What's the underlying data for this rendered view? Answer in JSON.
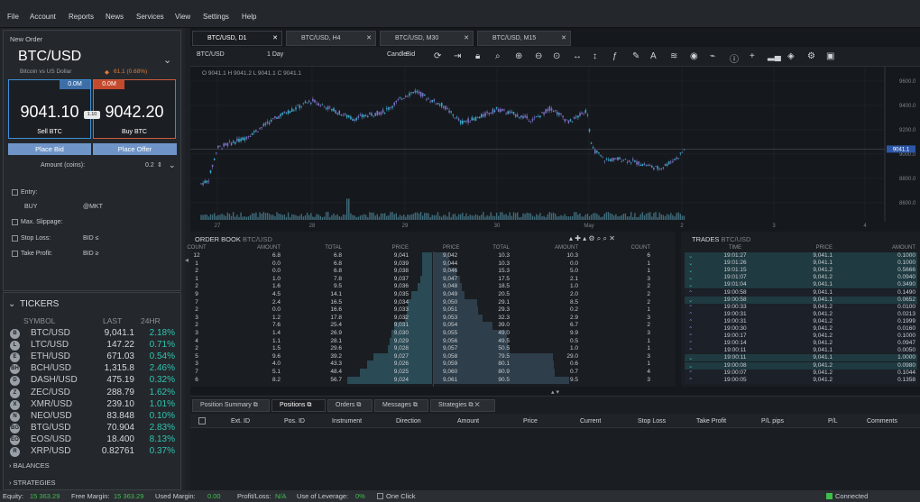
{
  "menu": [
    "File",
    "Account",
    "Reports",
    "News",
    "Services",
    "View",
    "Settings",
    "Help"
  ],
  "order": {
    "title": "New Order",
    "symbol": "BTC/USD",
    "subtitle": "Bitcoin vs US Dollar",
    "change": "61.1 (0.68%)",
    "sell_qty": "0.0M",
    "buy_qty": "0.0M",
    "sell_price": "9041.10",
    "buy_price": "9042.20",
    "spread": "1.10",
    "sell_label": "Sell BTC",
    "buy_label": "Buy BTC",
    "place_bid": "Place Bid",
    "place_offer": "Place Offer",
    "amount_label": "Amount (coins):",
    "amount_value": "0.2",
    "entry": "Entry:",
    "entry_type": "BUY",
    "entry_mkt": "@MKT",
    "max_slippage": "Max. Slippage:",
    "stop_loss": "Stop Loss:",
    "stop_val": "BID ≤",
    "take_profit": "Take Profit:",
    "take_val": "BID ≥"
  },
  "tickers": {
    "title": "TICKERS",
    "col_symbol": "SYMBOL",
    "col_last": "LAST",
    "col_24hr": "24HR",
    "rows": [
      {
        "icon": "B",
        "symbol": "BTC/USD",
        "last": "9,041.1",
        "change": "2.18%"
      },
      {
        "icon": "L",
        "symbol": "LTC/USD",
        "last": "147.22",
        "change": "0.71%"
      },
      {
        "icon": "E",
        "symbol": "ETH/USD",
        "last": "671.03",
        "change": "0.54%"
      },
      {
        "icon": "BH",
        "symbol": "BCH/USD",
        "last": "1,315.8",
        "change": "2.46%"
      },
      {
        "icon": "D",
        "symbol": "DASH/USD",
        "last": "475.19",
        "change": "0.32%"
      },
      {
        "icon": "Z",
        "symbol": "ZEC/USD",
        "last": "288.79",
        "change": "1.62%"
      },
      {
        "icon": "X",
        "symbol": "XMR/USD",
        "last": "239.10",
        "change": "1.01%"
      },
      {
        "icon": "N",
        "symbol": "NEO/USD",
        "last": "83.848",
        "change": "0.10%"
      },
      {
        "icon": "BG",
        "symbol": "BTG/USD",
        "last": "70.904",
        "change": "2.83%"
      },
      {
        "icon": "EO",
        "symbol": "EOS/USD",
        "last": "18.400",
        "change": "8.13%"
      },
      {
        "icon": "R",
        "symbol": "XRP/USD",
        "last": "0.82761",
        "change": "0.37%"
      }
    ],
    "balances": "BALANCES",
    "strategies": "STRATEGIES"
  },
  "tabs": [
    "BTC/USD, D1",
    "BTC/USD, H4",
    "BTC/USD, M30",
    "BTC/USD, M15"
  ],
  "toolbar": {
    "symbol": "BTC/USD",
    "period": "1 Day",
    "style": "Candle",
    "side": "Bid"
  },
  "chart": {
    "ohlc": "O 9041.1  H 9041.2  L 9041.1  C 9041.1",
    "price_tag": "9041.1",
    "yticks": [
      "9600.0",
      "9400.0",
      "9200.0",
      "9000.0",
      "8800.0",
      "8600.0"
    ],
    "xticks": [
      "27",
      "28",
      "29",
      "30",
      "May",
      "2",
      "3",
      "4"
    ]
  },
  "orderbook": {
    "title": "ORDER BOOK",
    "subtitle": "BTC/USD",
    "cols": [
      "COUNT",
      "AMOUNT",
      "TOTAL",
      "PRICE",
      "PRICE",
      "TOTAL",
      "AMOUNT",
      "COUNT"
    ],
    "rows": [
      [
        "12",
        "6.8",
        "6.8",
        "9,041",
        "9,042",
        "10.3",
        "10.3",
        "6"
      ],
      [
        "1",
        "0.0",
        "6.8",
        "9,039",
        "9,044",
        "10.3",
        "0.0",
        "1"
      ],
      [
        "2",
        "0.0",
        "6.8",
        "9,038",
        "9,046",
        "15.3",
        "5.0",
        "1"
      ],
      [
        "1",
        "1.0",
        "7.8",
        "9,037",
        "9,047",
        "17.5",
        "2.1",
        "3"
      ],
      [
        "2",
        "1.6",
        "9.5",
        "9,036",
        "9,048",
        "18.5",
        "1.0",
        "2"
      ],
      [
        "9",
        "4.5",
        "14.1",
        "9,035",
        "9,049",
        "20.5",
        "2.0",
        "2"
      ],
      [
        "7",
        "2.4",
        "16.5",
        "9,034",
        "9,050",
        "29.1",
        "8.5",
        "2"
      ],
      [
        "2",
        "0.0",
        "16.6",
        "9,033",
        "9,051",
        "29.3",
        "0.2",
        "1"
      ],
      [
        "3",
        "1.2",
        "17.8",
        "9,032",
        "9,053",
        "32.3",
        "2.9",
        "3"
      ],
      [
        "2",
        "7.6",
        "25.4",
        "9,031",
        "9,054",
        "39.0",
        "6.7",
        "2"
      ],
      [
        "3",
        "1.4",
        "26.9",
        "9,030",
        "9,055",
        "49.0",
        "9.9",
        "3"
      ],
      [
        "4",
        "1.1",
        "28.1",
        "9,029",
        "9,056",
        "49.5",
        "0.5",
        "1"
      ],
      [
        "2",
        "1.5",
        "29.6",
        "9,028",
        "9,057",
        "50.5",
        "1.0",
        "1"
      ],
      [
        "5",
        "9.6",
        "39.2",
        "9,027",
        "9,058",
        "79.5",
        "29.0",
        "3"
      ],
      [
        "3",
        "4.0",
        "43.3",
        "9,026",
        "9,059",
        "80.1",
        "0.6",
        "1"
      ],
      [
        "7",
        "5.1",
        "48.4",
        "9,025",
        "9,060",
        "80.9",
        "0.7",
        "4"
      ],
      [
        "6",
        "8.2",
        "56.7",
        "9,024",
        "9,061",
        "90.5",
        "9.5",
        "3"
      ]
    ]
  },
  "trades": {
    "title": "TRADES",
    "subtitle": "BTC/USD",
    "cols": [
      "TIME",
      "PRICE",
      "AMOUNT"
    ],
    "rows": [
      [
        "v",
        "19:01:27",
        "9,041.1",
        "0.1000"
      ],
      [
        "v",
        "19:01:26",
        "9,041.1",
        "0.1000"
      ],
      [
        "v",
        "19:01:15",
        "9,041.2",
        "0.5666"
      ],
      [
        "v",
        "19:01:07",
        "9,041.2",
        "0.0940"
      ],
      [
        "v",
        "19:01:04",
        "9,041.1",
        "0.3490"
      ],
      [
        "^",
        "19:00:58",
        "9,041.1",
        "0.1490"
      ],
      [
        "v",
        "19:00:58",
        "9,041.1",
        "0.0652"
      ],
      [
        "^",
        "19:00:33",
        "9,041.2",
        "0.0100"
      ],
      [
        "^",
        "19:00:31",
        "9,041.2",
        "0.0213"
      ],
      [
        "^",
        "19:00:31",
        "9,041.2",
        "0.1999"
      ],
      [
        "^",
        "19:00:30",
        "9,041.2",
        "0.0160"
      ],
      [
        "^",
        "19:00:17",
        "9,041.2",
        "0.1000"
      ],
      [
        "^",
        "19:00:14",
        "9,041.2",
        "0.0947"
      ],
      [
        "^",
        "19:00:11",
        "9,041.1",
        "0.0050"
      ],
      [
        "v",
        "19:00:11",
        "9,041.1",
        "1.0000"
      ],
      [
        "v",
        "19:00:08",
        "9,041.2",
        "0.0980"
      ],
      [
        "^",
        "19:00:07",
        "9,041.2",
        "0.1044"
      ],
      [
        "^",
        "19:00:05",
        "9,041.2",
        "0.1358"
      ]
    ]
  },
  "bottom": {
    "tabs": [
      "Position Summary",
      "Positions",
      "Orders",
      "Messages",
      "Strategies"
    ],
    "cols": [
      "Ext. ID",
      "Pos. ID",
      "Instrument",
      "Direction",
      "Amount",
      "Price",
      "Current",
      "Stop Loss",
      "Take Profit",
      "P/L pips",
      "P/L",
      "Comments"
    ]
  },
  "status": {
    "equity_label": "Equity:",
    "equity": "15 363.29",
    "free_label": "Free Margin:",
    "free": "15 363.29",
    "used_label": "Used Margin:",
    "used": "0.00",
    "pl_label": "Profit/Loss:",
    "pl": "N/A",
    "lev_label": "Use of Leverage:",
    "lev": "0%",
    "oneclick": "One Click",
    "connected": "Connected"
  },
  "colors": {
    "up": "#2fc4b0",
    "candle_up": "#3aa6c8",
    "candle_down": "#7b6fc4",
    "green": "#3fbf4a",
    "buy": "#d05a3c",
    "sell": "#3d8fd6"
  }
}
